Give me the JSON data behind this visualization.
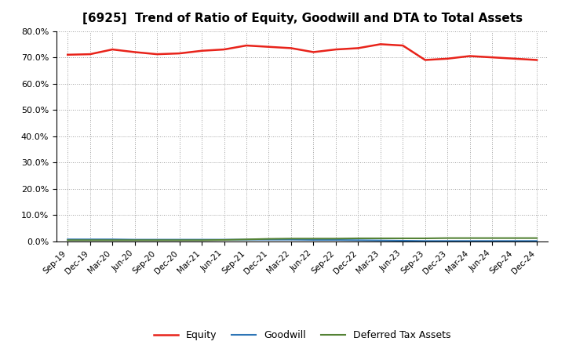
{
  "title": "[6925]  Trend of Ratio of Equity, Goodwill and DTA to Total Assets",
  "x_labels": [
    "Sep-19",
    "Dec-19",
    "Mar-20",
    "Jun-20",
    "Sep-20",
    "Dec-20",
    "Mar-21",
    "Jun-21",
    "Sep-21",
    "Dec-21",
    "Mar-22",
    "Jun-22",
    "Sep-22",
    "Dec-22",
    "Mar-23",
    "Jun-23",
    "Sep-23",
    "Dec-23",
    "Mar-24",
    "Jun-24",
    "Sep-24",
    "Dec-24"
  ],
  "equity": [
    71.0,
    71.2,
    73.0,
    72.0,
    71.2,
    71.5,
    72.5,
    73.0,
    74.5,
    74.0,
    73.5,
    72.0,
    73.0,
    73.5,
    75.0,
    74.5,
    69.0,
    69.5,
    70.5,
    70.0,
    69.5,
    69.0
  ],
  "goodwill": [
    0.8,
    0.8,
    0.8,
    0.7,
    0.7,
    0.7,
    0.7,
    0.7,
    0.7,
    0.7,
    0.7,
    0.6,
    0.6,
    0.5,
    0.4,
    0.3,
    0.2,
    0.2,
    0.2,
    0.2,
    0.2,
    0.2
  ],
  "dta": [
    0.5,
    0.5,
    0.5,
    0.5,
    0.5,
    0.5,
    0.5,
    0.6,
    0.8,
    1.0,
    1.1,
    1.1,
    1.1,
    1.2,
    1.2,
    1.2,
    1.2,
    1.3,
    1.3,
    1.3,
    1.3,
    1.3
  ],
  "equity_color": "#e8231a",
  "goodwill_color": "#2e75b6",
  "dta_color": "#548235",
  "background_color": "#ffffff",
  "grid_color": "#888888",
  "ylim": [
    0,
    80
  ],
  "yticks": [
    0.0,
    10.0,
    20.0,
    30.0,
    40.0,
    50.0,
    60.0,
    70.0,
    80.0
  ],
  "title_fontsize": 11,
  "legend_labels": [
    "Equity",
    "Goodwill",
    "Deferred Tax Assets"
  ]
}
